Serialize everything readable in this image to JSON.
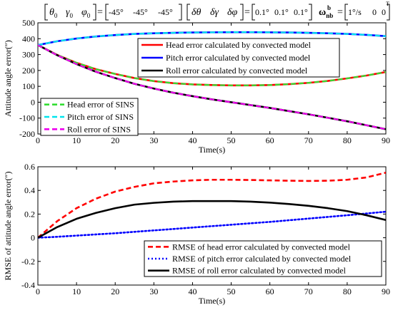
{
  "header": {
    "group1": {
      "vars": [
        "θ",
        "γ",
        "φ"
      ],
      "values": [
        "-45°",
        "-45°",
        "-45°"
      ]
    },
    "group2": {
      "vars": [
        "δθ",
        "δγ",
        "δφ"
      ],
      "values": [
        "0.1°",
        "0.1°",
        "0.1°"
      ]
    },
    "group3": {
      "lhs": "ω",
      "sub": "nb",
      "sup": "b",
      "values": [
        "1°/s",
        "0",
        "0"
      ],
      "transpose": "T"
    }
  },
  "chart_data": [
    {
      "type": "line",
      "xlabel": "Time(s)",
      "ylabel": "Attitude angle error(″)",
      "xlim": [
        0,
        90
      ],
      "ylim": [
        -200,
        500
      ],
      "xticks": [
        0,
        10,
        20,
        30,
        40,
        50,
        60,
        70,
        80,
        90
      ],
      "yticks": [
        -200,
        -100,
        0,
        100,
        200,
        300,
        400,
        500
      ],
      "grid": false,
      "legends": [
        {
          "placement": "top-right",
          "entries": [
            {
              "label": "Head error calculated by convected model",
              "color": "#ff0000",
              "style": "solid"
            },
            {
              "label": "Pitch error calculated by convected model",
              "color": "#0000ff",
              "style": "solid"
            },
            {
              "label": "Roll error calculated by convected model",
              "color": "#000000",
              "style": "solid"
            }
          ]
        },
        {
          "placement": "bottom-left",
          "entries": [
            {
              "label": "Head error of SINS",
              "color": "#33dd33",
              "style": "dashed"
            },
            {
              "label": "Pitch error of SINS",
              "color": "#00e5ee",
              "style": "dashed"
            },
            {
              "label": "Roll error of SINS",
              "color": "#ee00ee",
              "style": "dashed"
            }
          ]
        }
      ],
      "x": [
        0,
        5,
        10,
        15,
        20,
        25,
        30,
        35,
        40,
        45,
        50,
        55,
        60,
        65,
        70,
        75,
        80,
        85,
        90
      ],
      "series": [
        {
          "name": "Head error calculated by convected model",
          "color": "#ff0000",
          "style": "solid",
          "width": 2.6,
          "values": [
            360,
            298,
            248,
            208,
            178,
            152,
            133,
            120,
            112,
            108,
            106,
            106,
            108,
            114,
            122,
            134,
            150,
            168,
            190
          ]
        },
        {
          "name": "Pitch error calculated by convected model",
          "color": "#0000ff",
          "style": "solid",
          "width": 2.6,
          "values": [
            360,
            384,
            401,
            414,
            423,
            430,
            434,
            437,
            439,
            440,
            441,
            441,
            440,
            439,
            437,
            434,
            430,
            424,
            416
          ]
        },
        {
          "name": "Roll error calculated by convected model",
          "color": "#000000",
          "style": "solid",
          "width": 2.6,
          "values": [
            360,
            296,
            240,
            192,
            152,
            116,
            86,
            60,
            38,
            18,
            0,
            -18,
            -36,
            -56,
            -76,
            -98,
            -120,
            -145,
            -170
          ]
        },
        {
          "name": "Head error of SINS",
          "color": "#33dd33",
          "style": "dashed",
          "width": 2.2,
          "values": [
            360,
            298,
            248,
            208,
            178,
            152,
            133,
            120,
            112,
            108,
            106,
            106,
            108,
            114,
            122,
            134,
            150,
            168,
            190
          ]
        },
        {
          "name": "Pitch error of SINS",
          "color": "#00e5ee",
          "style": "dashed",
          "width": 2.2,
          "values": [
            360,
            384,
            401,
            414,
            423,
            430,
            434,
            437,
            439,
            440,
            441,
            441,
            440,
            439,
            437,
            434,
            430,
            424,
            416
          ]
        },
        {
          "name": "Roll error of SINS",
          "color": "#ee00ee",
          "style": "dashed",
          "width": 2.2,
          "values": [
            360,
            296,
            240,
            192,
            152,
            116,
            86,
            60,
            38,
            18,
            0,
            -18,
            -36,
            -56,
            -76,
            -98,
            -120,
            -145,
            -170
          ]
        }
      ]
    },
    {
      "type": "line",
      "xlabel": "Time(s)",
      "ylabel": "RMSE of attitude angle error(″)",
      "xlim": [
        0,
        90
      ],
      "ylim": [
        -0.4,
        0.6
      ],
      "xticks": [
        0,
        10,
        20,
        30,
        40,
        50,
        60,
        70,
        80,
        90
      ],
      "yticks": [
        -0.4,
        -0.2,
        0,
        0.2,
        0.4,
        0.6
      ],
      "grid": false,
      "legends": [
        {
          "placement": "bottom-right",
          "entries": [
            {
              "label": "RMSE of head error calculated by convected model",
              "color": "#ff0000",
              "style": "dashed"
            },
            {
              "label": "RMSE of pitch error calculated by convected model",
              "color": "#0000ff",
              "style": "dotted"
            },
            {
              "label": "RMSE of roll error calculated by convected model",
              "color": "#000000",
              "style": "solid"
            }
          ]
        }
      ],
      "x": [
        0,
        5,
        10,
        15,
        20,
        25,
        30,
        35,
        40,
        45,
        50,
        55,
        60,
        65,
        70,
        75,
        80,
        85,
        90
      ],
      "series": [
        {
          "name": "RMSE of head error calculated by convected model",
          "color": "#ff0000",
          "style": "dashed",
          "width": 2.6,
          "values": [
            0,
            0.14,
            0.25,
            0.33,
            0.39,
            0.43,
            0.46,
            0.475,
            0.485,
            0.49,
            0.49,
            0.488,
            0.485,
            0.482,
            0.48,
            0.482,
            0.49,
            0.51,
            0.55
          ]
        },
        {
          "name": "RMSE of pitch error calculated by convected model",
          "color": "#0000ff",
          "style": "dotted",
          "width": 2.6,
          "values": [
            0,
            0.008,
            0.018,
            0.028,
            0.038,
            0.05,
            0.062,
            0.074,
            0.086,
            0.098,
            0.11,
            0.122,
            0.134,
            0.148,
            0.162,
            0.176,
            0.19,
            0.205,
            0.22
          ]
        },
        {
          "name": "RMSE of roll error calculated by convected model",
          "color": "#000000",
          "style": "solid",
          "width": 2.6,
          "values": [
            0,
            0.09,
            0.16,
            0.21,
            0.25,
            0.28,
            0.295,
            0.305,
            0.31,
            0.31,
            0.31,
            0.305,
            0.297,
            0.285,
            0.27,
            0.25,
            0.225,
            0.19,
            0.15
          ]
        }
      ]
    }
  ]
}
